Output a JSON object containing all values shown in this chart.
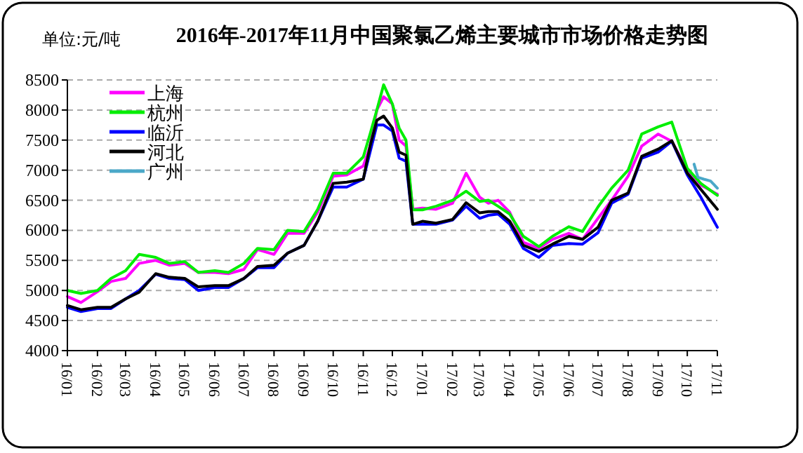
{
  "chart_data": {
    "type": "line",
    "title": "2016年-2017年11月中国聚氯乙烯主要城市市场价格走势图",
    "ylabel": "单位:元/吨",
    "x": [
      "2016-01-01",
      "2016-01-15",
      "2016-02-01",
      "2016-02-15",
      "2016-03-01",
      "2016-03-15",
      "2016-04-01",
      "2016-04-15",
      "2016-05-01",
      "2016-05-15",
      "2016-06-01",
      "2016-06-15",
      "2016-07-01",
      "2016-07-15",
      "2016-08-01",
      "2016-08-15",
      "2016-09-01",
      "2016-09-15",
      "2016-10-01",
      "2016-10-15",
      "2016-11-01",
      "2016-11-08",
      "2016-11-15",
      "2016-11-22",
      "2016-12-01",
      "2016-12-08",
      "2016-12-15",
      "2016-12-22",
      "2017-01-01",
      "2017-01-15",
      "2017-02-01",
      "2017-02-15",
      "2017-03-01",
      "2017-03-10",
      "2017-03-20",
      "2017-04-01",
      "2017-04-15",
      "2017-05-01",
      "2017-05-15",
      "2017-06-01",
      "2017-06-15",
      "2017-07-01",
      "2017-07-15",
      "2017-08-01",
      "2017-08-15",
      "2017-09-01",
      "2017-09-15",
      "2017-10-01",
      "2017-10-15",
      "2017-11-01"
    ],
    "series": [
      {
        "name": "上海",
        "color": "#ff00ff",
        "values": [
          4900,
          4800,
          4980,
          5150,
          5200,
          5450,
          5500,
          5420,
          5450,
          5300,
          5300,
          5280,
          5350,
          5680,
          5600,
          5950,
          5950,
          6300,
          6900,
          6920,
          7070,
          7400,
          8000,
          8220,
          8100,
          7500,
          7400,
          6350,
          6370,
          6350,
          6450,
          6950,
          6550,
          6450,
          6500,
          6300,
          5800,
          5700,
          5850,
          5950,
          5850,
          6200,
          6500,
          6900,
          7400,
          7600,
          7480,
          7000,
          6750,
          6600
        ]
      },
      {
        "name": "杭州",
        "color": "#00ee00",
        "values": [
          5000,
          4950,
          5000,
          5200,
          5330,
          5600,
          5550,
          5450,
          5480,
          5300,
          5330,
          5300,
          5450,
          5700,
          5680,
          6000,
          5980,
          6350,
          6950,
          6950,
          7220,
          7600,
          8000,
          8420,
          8100,
          7700,
          7500,
          6340,
          6340,
          6400,
          6500,
          6650,
          6480,
          6500,
          6400,
          6270,
          5900,
          5730,
          5900,
          6060,
          5980,
          6390,
          6700,
          7000,
          7600,
          7720,
          7800,
          7030,
          6780,
          6580
        ]
      },
      {
        "name": "临沂",
        "color": "#0000ff",
        "values": [
          4720,
          4650,
          4700,
          4700,
          4860,
          5000,
          5270,
          5200,
          5180,
          5000,
          5050,
          5050,
          5200,
          5380,
          5380,
          5620,
          5750,
          6150,
          6720,
          6720,
          6850,
          7300,
          7750,
          7750,
          7650,
          7200,
          7150,
          6100,
          6100,
          6100,
          6170,
          6400,
          6200,
          6250,
          6270,
          6100,
          5700,
          5550,
          5750,
          5780,
          5770,
          5960,
          6450,
          6600,
          7200,
          7300,
          7480,
          6920,
          6550,
          6050
        ]
      },
      {
        "name": "河北",
        "color": "#000000",
        "values": [
          4750,
          4680,
          4720,
          4720,
          4860,
          4970,
          5280,
          5220,
          5200,
          5060,
          5080,
          5080,
          5200,
          5400,
          5420,
          5620,
          5750,
          6150,
          6780,
          6800,
          6850,
          7400,
          7830,
          7900,
          7700,
          7300,
          7250,
          6100,
          6150,
          6120,
          6180,
          6460,
          6290,
          6310,
          6310,
          6150,
          5750,
          5650,
          5770,
          5900,
          5850,
          6050,
          6500,
          6620,
          7230,
          7350,
          7490,
          6950,
          6680,
          6350
        ]
      },
      {
        "name": "广州",
        "color": "#4ba8c8",
        "x": [
          "2017-10-08",
          "2017-10-12",
          "2017-10-18",
          "2017-10-25",
          "2017-11-01"
        ],
        "values": [
          7100,
          6880,
          6850,
          6820,
          6700
        ]
      }
    ],
    "xlim": [
      "2016-01-01",
      "2017-11-01"
    ],
    "xticks": [
      {
        "value": "2016-01-01",
        "label": "16/01"
      },
      {
        "value": "2016-02-01",
        "label": "16/02"
      },
      {
        "value": "2016-03-01",
        "label": "16/03"
      },
      {
        "value": "2016-04-01",
        "label": "16/04"
      },
      {
        "value": "2016-05-01",
        "label": "16/05"
      },
      {
        "value": "2016-06-01",
        "label": "16/06"
      },
      {
        "value": "2016-07-01",
        "label": "16/07"
      },
      {
        "value": "2016-08-01",
        "label": "16/08"
      },
      {
        "value": "2016-09-01",
        "label": "16/09"
      },
      {
        "value": "2016-10-01",
        "label": "16/10"
      },
      {
        "value": "2016-11-01",
        "label": "16/11"
      },
      {
        "value": "2016-12-01",
        "label": "16/12"
      },
      {
        "value": "2017-01-01",
        "label": "17/01"
      },
      {
        "value": "2017-02-01",
        "label": "17/02"
      },
      {
        "value": "2017-03-01",
        "label": "17/03"
      },
      {
        "value": "2017-04-01",
        "label": "17/04"
      },
      {
        "value": "2017-05-01",
        "label": "17/05"
      },
      {
        "value": "2017-06-01",
        "label": "17/06"
      },
      {
        "value": "2017-07-01",
        "label": "17/07"
      },
      {
        "value": "2017-08-01",
        "label": "17/08"
      },
      {
        "value": "2017-09-01",
        "label": "17/09"
      },
      {
        "value": "2017-10-01",
        "label": "17/10"
      },
      {
        "value": "2017-11-01",
        "label": "17/11"
      }
    ],
    "ylim": [
      4000,
      8500
    ],
    "yticks": [
      4000,
      4500,
      5000,
      5500,
      6000,
      6500,
      7000,
      7500,
      8000,
      8500
    ],
    "grid": "y",
    "legend": "top left",
    "marker": "none",
    "line_style": "solid"
  }
}
